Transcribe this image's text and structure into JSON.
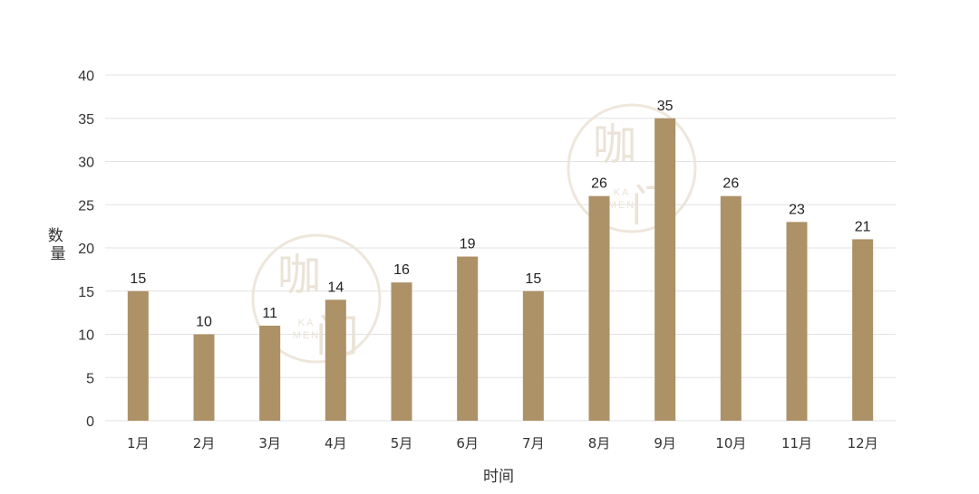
{
  "chart_data": {
    "type": "bar",
    "categories": [
      "1月",
      "2月",
      "3月",
      "4月",
      "5月",
      "6月",
      "7月",
      "8月",
      "9月",
      "10月",
      "11月",
      "12月"
    ],
    "values": [
      15,
      10,
      11,
      14,
      16,
      19,
      15,
      26,
      35,
      26,
      23,
      21
    ],
    "xlabel": "时间",
    "ylabel": "数量",
    "ylim": [
      0,
      40
    ],
    "yticks": [
      0,
      5,
      10,
      15,
      20,
      25,
      30,
      35,
      40
    ],
    "grid": true,
    "bar_color": "#ad9167"
  },
  "watermark": {
    "glyph_top": "咖",
    "glyph_bottom": "门",
    "sub_top": "KA",
    "sub_bottom": "MEN"
  }
}
